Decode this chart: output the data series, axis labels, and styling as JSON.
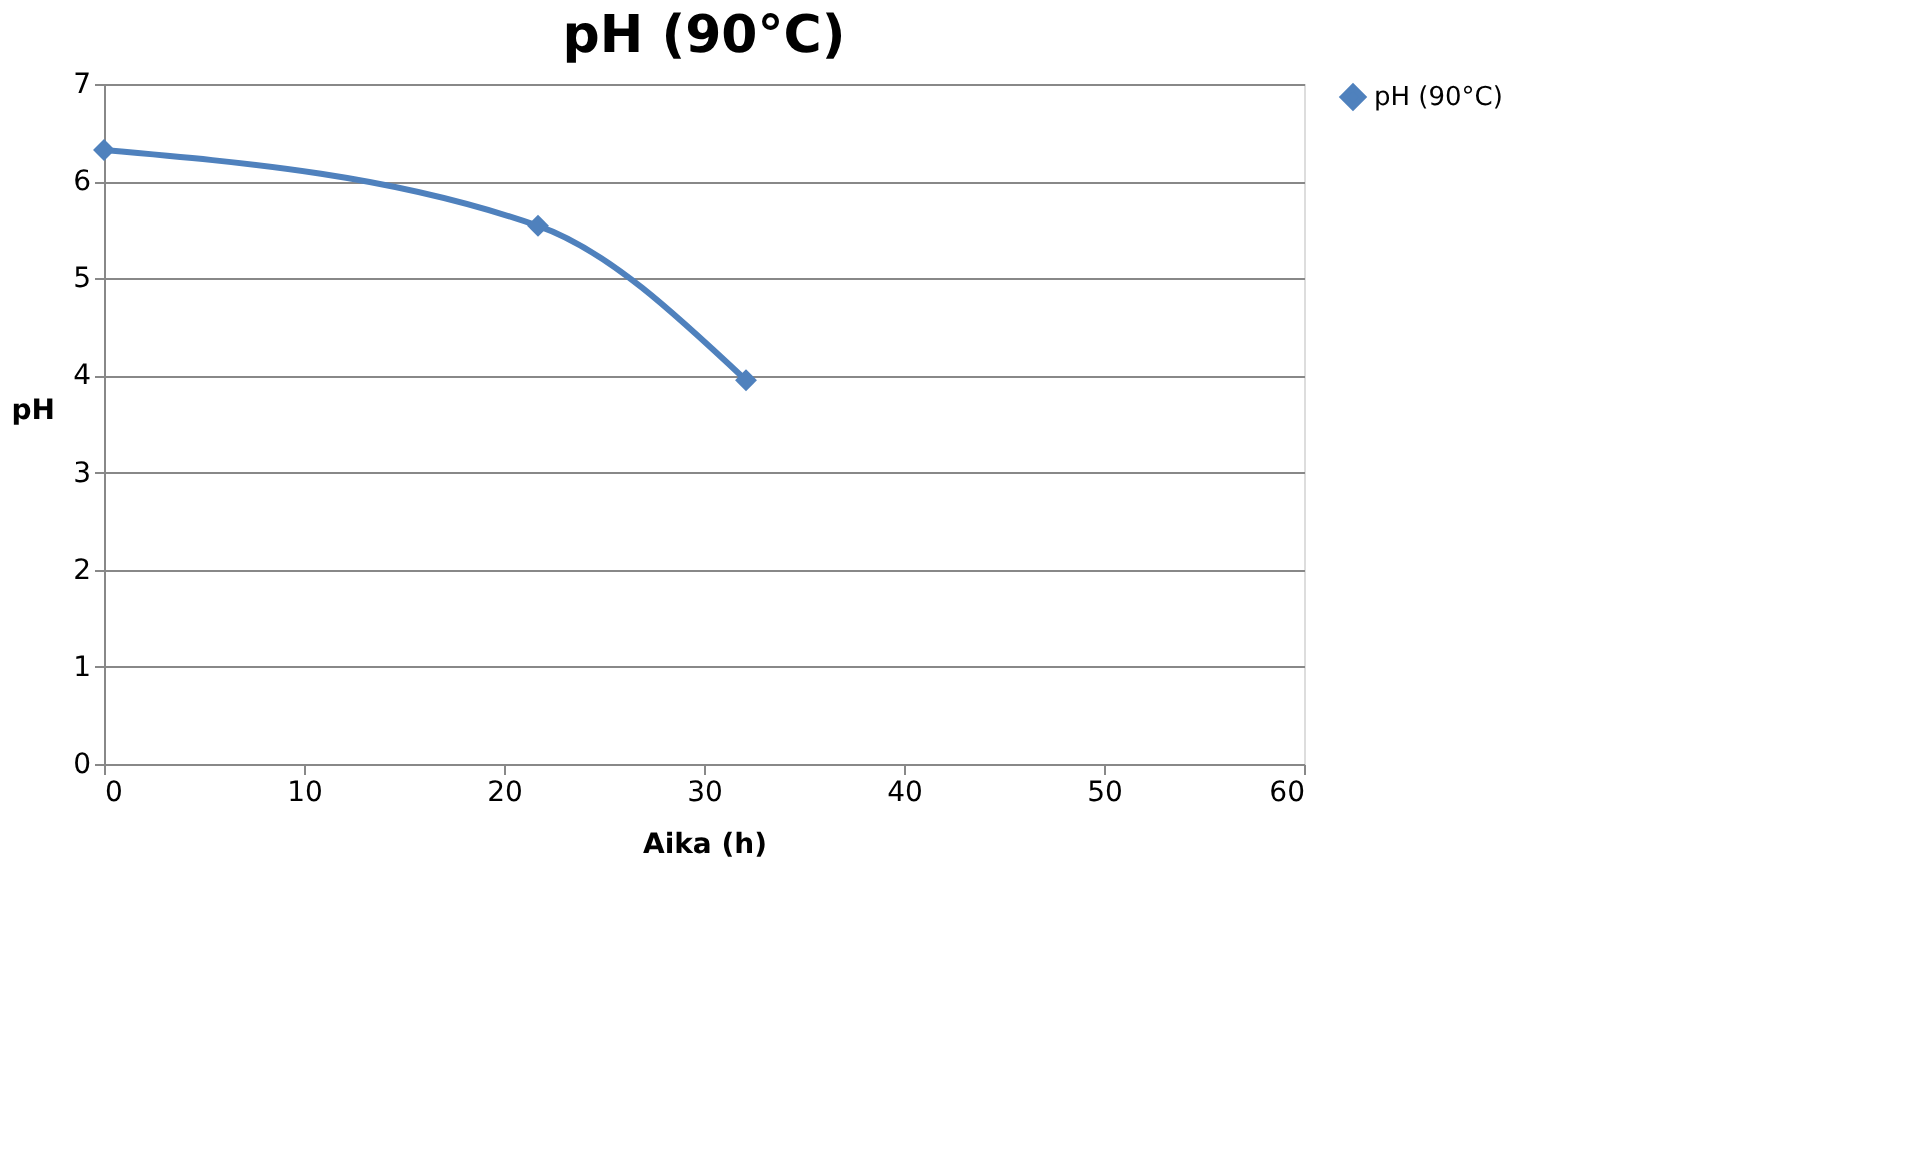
{
  "chart_data": {
    "type": "line",
    "title": "pH (90°C)",
    "xlabel": "Aika (h)",
    "ylabel": "pH",
    "x": [
      0,
      21.7,
      32.1
    ],
    "series": [
      {
        "name": "pH (90°C)",
        "color": "#4f81bd",
        "values": [
          6.32,
          5.54,
          3.95
        ]
      }
    ],
    "xlim": [
      0,
      60
    ],
    "xticks": [
      0,
      10,
      20,
      30,
      40,
      50,
      60
    ],
    "ylim": [
      0,
      7
    ],
    "yticks": [
      0,
      1,
      2,
      3,
      4,
      5,
      6,
      7
    ],
    "grid": "y",
    "legend": "right",
    "marker": "diamond",
    "line_style": "solid"
  }
}
